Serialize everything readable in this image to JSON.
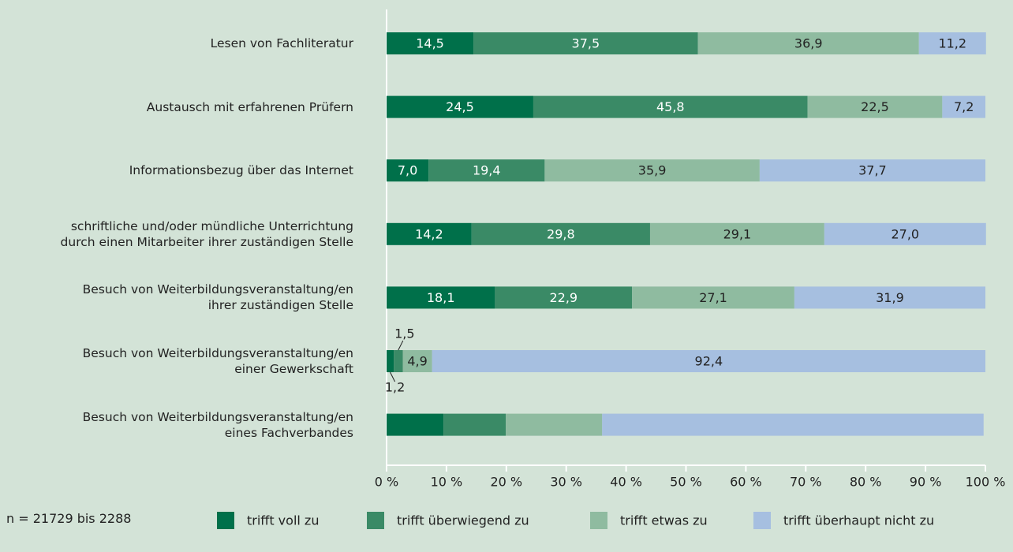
{
  "chart_data": {
    "type": "stacked_bar_horizontal",
    "categories": [
      "Lesen von Fachliteratur",
      "Austausch mit erfahrenen Prüfern",
      "Informationsbezug über das Internet",
      "schriftliche und/oder mündliche Unterrichtung\ndurch einen Mitarbeiter ihrer zuständigen Stelle",
      "Besuch von Weiterbildungsveranstaltung/en\nihrer zuständigen Stelle",
      "Besuch von Weiterbildungsveranstaltung/en\neiner Gewerkschaft",
      "Besuch von Weiterbildungsveranstaltung/en\neines Fachverbandes"
    ],
    "series": [
      {
        "name": "trifft voll zu",
        "color": "#00704a",
        "values": [
          14.5,
          24.5,
          7.0,
          14.2,
          18.1,
          1.2,
          9.5
        ],
        "value_labels": [
          "14,5",
          "24,5",
          "7,0",
          "14,2",
          "18,1",
          "1,2",
          null
        ]
      },
      {
        "name": "trifft überwiegend zu",
        "color": "#3a8a66",
        "values": [
          37.5,
          45.8,
          19.4,
          29.8,
          22.9,
          1.5,
          10.4
        ],
        "value_labels": [
          "37,5",
          "45,8",
          "19,4",
          "29,8",
          "22,9",
          "1,5",
          null
        ]
      },
      {
        "name": "trifft etwas zu",
        "color": "#8fbba0",
        "values": [
          36.9,
          22.5,
          35.9,
          29.1,
          27.1,
          4.9,
          16.1
        ],
        "value_labels": [
          "36,9",
          "22,5",
          "35,9",
          "29,1",
          "27,1",
          "4,9",
          null
        ]
      },
      {
        "name": "trifft überhaupt nicht zu",
        "color": "#a6bfe0",
        "values": [
          11.2,
          7.2,
          37.7,
          27.0,
          31.9,
          92.4,
          63.7
        ],
        "value_labels": [
          "11,2",
          "7,2",
          "37,7",
          "27,0",
          "31,9",
          "92,4",
          null
        ]
      }
    ],
    "xlim": [
      0,
      100
    ],
    "xticks": [
      {
        "value": 0,
        "label": "0 %"
      },
      {
        "value": 10,
        "label": "10 %"
      },
      {
        "value": 20,
        "label": "20 %"
      },
      {
        "value": 30,
        "label": "30 %"
      },
      {
        "value": 40,
        "label": "40 %"
      },
      {
        "value": 50,
        "label": "50 %"
      },
      {
        "value": 60,
        "label": "60 %"
      },
      {
        "value": 70,
        "label": "70 %"
      },
      {
        "value": 80,
        "label": "80 %"
      },
      {
        "value": 90,
        "label": "90 %"
      },
      {
        "value": 100,
        "label": "100 %"
      }
    ],
    "note": "n = 21729 bis 2288"
  }
}
